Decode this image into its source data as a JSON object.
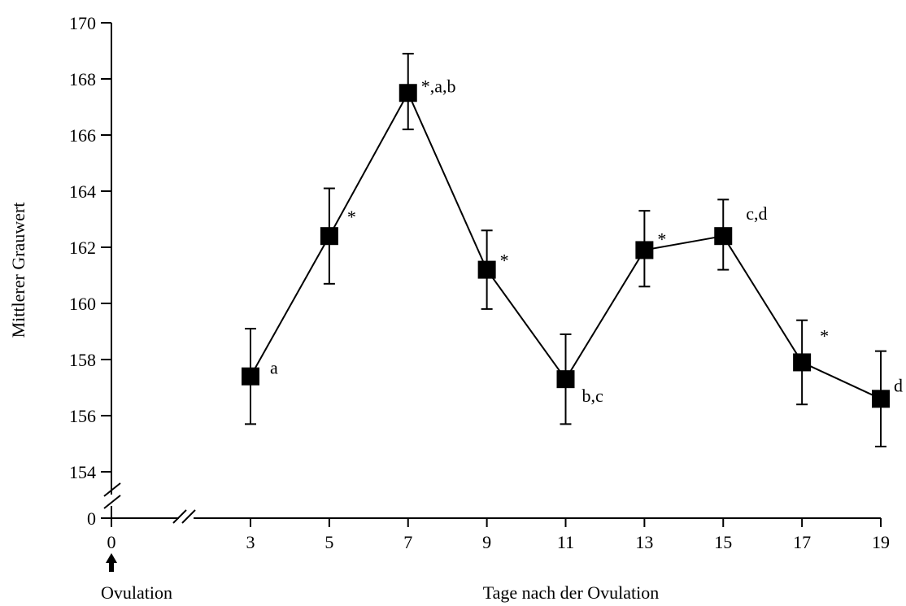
{
  "chart_data": {
    "type": "line",
    "title": "",
    "xlabel": "Tage nach der Ovulation",
    "ylabel": "Mittlerer Grauwert",
    "ylim": [
      154,
      170
    ],
    "y_axis_break_below": 154,
    "y_axis_zero_label": "0",
    "x_zero_label": "0",
    "x_break_after": 0,
    "ovulation_label": "Ovulation",
    "xticks": [
      "3",
      "5",
      "7",
      "9",
      "11",
      "13",
      "15",
      "17",
      "19"
    ],
    "yticks": [
      "154",
      "156",
      "158",
      "160",
      "162",
      "164",
      "166",
      "168",
      "170"
    ],
    "grid": false,
    "series": [
      {
        "x": [
          3,
          5,
          7,
          9,
          11,
          13,
          15,
          17,
          19
        ],
        "y": [
          157.4,
          162.4,
          167.5,
          161.2,
          157.3,
          161.9,
          162.4,
          157.9,
          156.6
        ],
        "err_upper": [
          159.1,
          164.1,
          168.9,
          162.6,
          158.9,
          163.3,
          163.7,
          159.4,
          158.3
        ],
        "err_lower": [
          155.7,
          160.7,
          166.2,
          159.8,
          155.7,
          160.6,
          161.2,
          156.4,
          154.9
        ],
        "marker": "square",
        "color": "#000000"
      }
    ],
    "annotations": [
      "a",
      "*",
      "*,a,b",
      "*",
      "b,c",
      "*",
      "c,d",
      "*",
      "d"
    ]
  }
}
